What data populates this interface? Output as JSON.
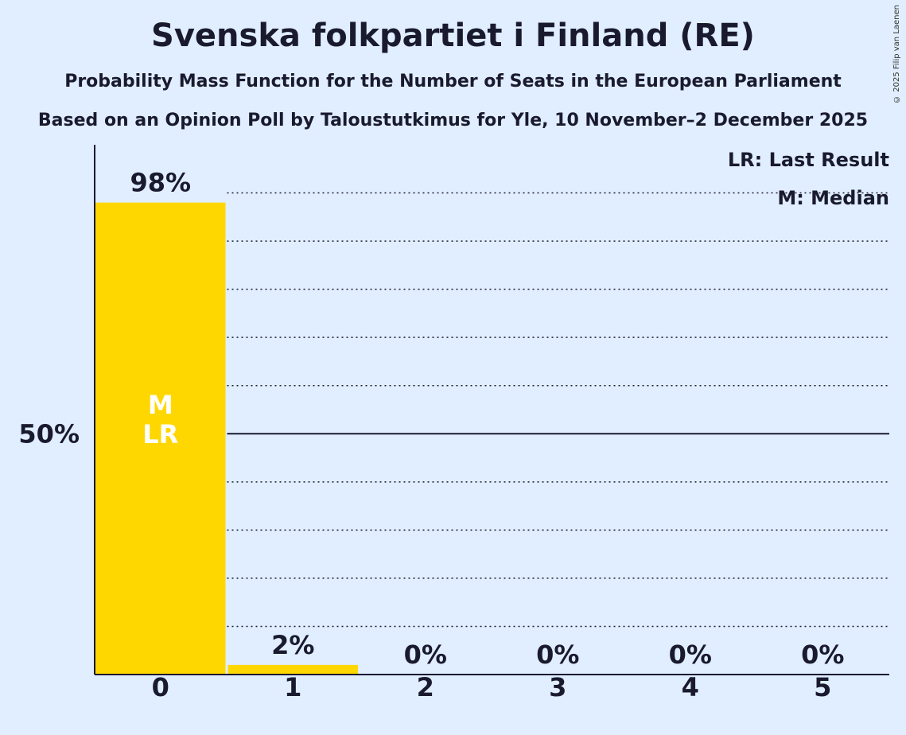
{
  "chart_data": {
    "type": "bar",
    "title": "Svenska folkpartiet i Finland (RE)",
    "subtitle": "Probability Mass Function for the Number of Seats in the European Parliament",
    "subtitle2": "Based on an Opinion Poll by Taloustutkimus for Yle, 10 November–2 December 2025",
    "categories": [
      "0",
      "1",
      "2",
      "3",
      "4",
      "5"
    ],
    "values": [
      98,
      2,
      0,
      0,
      0,
      0
    ],
    "value_labels": [
      "98%",
      "2%",
      "0%",
      "0%",
      "0%",
      "0%"
    ],
    "ylim": [
      0,
      110
    ],
    "yticks": [
      {
        "value": 50,
        "label": "50%"
      }
    ],
    "grid_step": 10,
    "bar_color": "#ffd700",
    "median_index": 0,
    "last_result_index": 0,
    "bar_annotation": [
      "M",
      "LR"
    ],
    "legend": [
      "LR: Last Result",
      "M: Median"
    ],
    "copyright": "© 2025 Filip van Laenen"
  }
}
